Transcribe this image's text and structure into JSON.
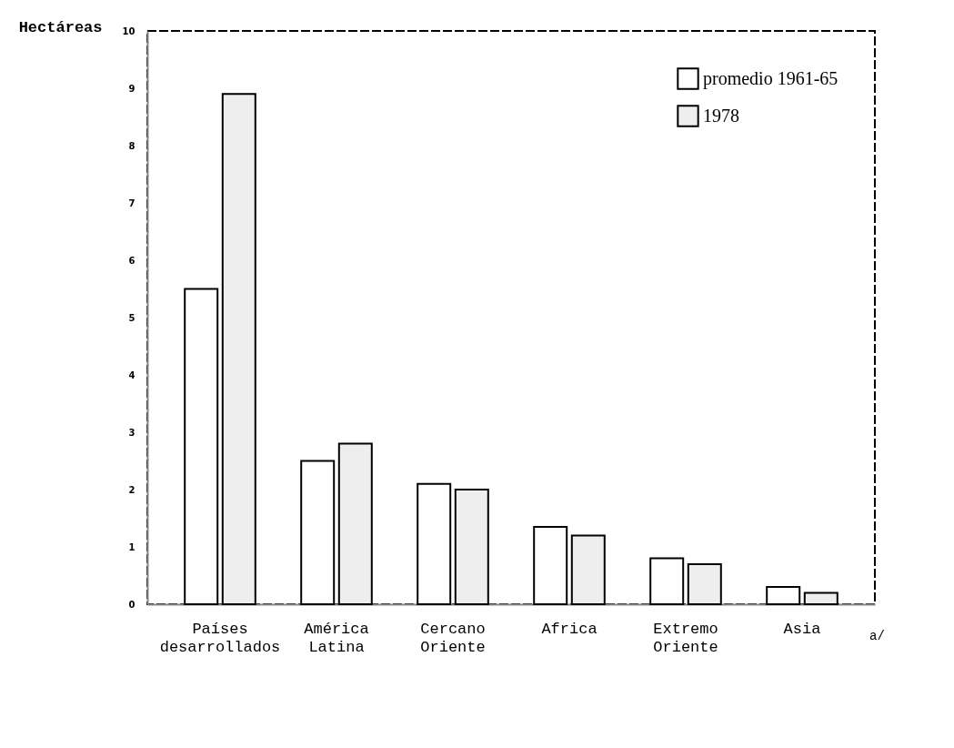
{
  "chart_data": {
    "type": "bar",
    "ylabel": "Hectáreas",
    "categories": [
      "Países desarrollados",
      "América Latina",
      "Cercano Oriente",
      "Africa",
      "Extremo Oriente",
      "Asia"
    ],
    "series": [
      {
        "name": "promedio 1961-65",
        "color": "#ffffff",
        "values": [
          5.5,
          2.5,
          2.1,
          1.35,
          0.8,
          0.3
        ]
      },
      {
        "name": "1978",
        "color": "#eeeeee",
        "values": [
          8.9,
          2.8,
          2.0,
          1.2,
          0.7,
          0.2
        ]
      }
    ],
    "ylim": [
      0,
      10
    ],
    "yticks": [
      0,
      1,
      2,
      3,
      4,
      5,
      6,
      7,
      8,
      9,
      10
    ],
    "grid": false,
    "legend": "top right",
    "annotations": [
      "a/"
    ]
  }
}
